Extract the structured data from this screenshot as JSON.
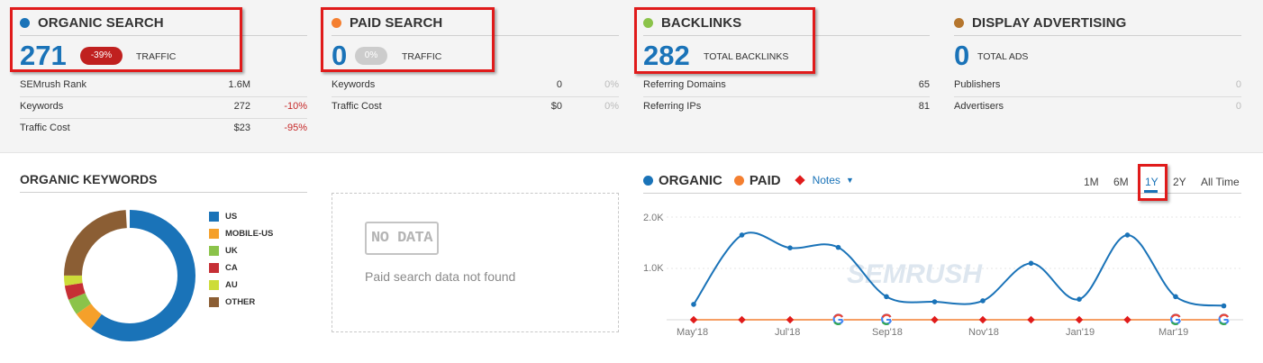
{
  "colors": {
    "blue": "#1a73b8",
    "orange": "#f47f30",
    "green": "#8bc34a",
    "brown": "#b5762e",
    "red": "#e01b1b",
    "pill_red": "#c0201f",
    "pill_grey": "#cccccc",
    "neg": "#c62828",
    "grey": "#999999"
  },
  "organic": {
    "title": "ORGANIC SEARCH",
    "value": "271",
    "change": "-39%",
    "label": "TRAFFIC",
    "rows": [
      {
        "label": "SEMrush Rank",
        "value": "1.6M",
        "change": ""
      },
      {
        "label": "Keywords",
        "value": "272",
        "change": "-10%"
      },
      {
        "label": "Traffic Cost",
        "value": "$23",
        "change": "-95%"
      }
    ]
  },
  "paid": {
    "title": "PAID SEARCH",
    "value": "0",
    "change": "0%",
    "label": "TRAFFIC",
    "rows": [
      {
        "label": "Keywords",
        "value": "0",
        "change": "0%"
      },
      {
        "label": "Traffic Cost",
        "value": "$0",
        "change": "0%"
      }
    ]
  },
  "backlinks": {
    "title": "BACKLINKS",
    "value": "282",
    "label": "TOTAL BACKLINKS",
    "rows": [
      {
        "label": "Referring Domains",
        "value": "65"
      },
      {
        "label": "Referring IPs",
        "value": "81"
      }
    ]
  },
  "display": {
    "title": "DISPLAY ADVERTISING",
    "value": "0",
    "label": "TOTAL ADS",
    "rows": [
      {
        "label": "Publishers",
        "value": "0"
      },
      {
        "label": "Advertisers",
        "value": "0"
      }
    ]
  },
  "organic_keywords": {
    "title": "ORGANIC KEYWORDS",
    "legend": [
      {
        "label": "US",
        "color": "#1a73b8"
      },
      {
        "label": "MOBILE-US",
        "color": "#f5a02a"
      },
      {
        "label": "UK",
        "color": "#8bc34a"
      },
      {
        "label": "CA",
        "color": "#c62f35"
      },
      {
        "label": "AU",
        "color": "#cddc39"
      },
      {
        "label": "OTHER",
        "color": "#8b5e34"
      }
    ],
    "shares": [
      0.6,
      0.05,
      0.04,
      0.035,
      0.025,
      0.24
    ]
  },
  "paid_panel": {
    "badge": "NO DATA",
    "message": "Paid search data not found"
  },
  "trend": {
    "legend_organic": "ORGANIC",
    "legend_paid": "PAID",
    "notes": "Notes",
    "periods": [
      "1M",
      "6M",
      "1Y",
      "2Y",
      "All Time"
    ],
    "active_period": "1Y"
  },
  "chart_data": {
    "type": "line",
    "x": [
      "May'18",
      "Jun'18",
      "Jul'18",
      "Aug'18",
      "Sep'18",
      "Oct'18",
      "Nov'18",
      "Dec'18",
      "Jan'19",
      "Feb'19",
      "Mar'19",
      "Apr'19"
    ],
    "xticks": [
      "May'18",
      "Jul'18",
      "Sep'18",
      "Nov'18",
      "Jan'19",
      "Mar'19"
    ],
    "yticks": [
      "2.0K",
      "1.0K"
    ],
    "ylim": [
      0,
      2000
    ],
    "series": [
      {
        "name": "ORGANIC",
        "color": "#1a73b8",
        "values": [
          300,
          1650,
          1400,
          1410,
          450,
          350,
          370,
          1100,
          400,
          1650,
          450,
          270
        ]
      },
      {
        "name": "PAID",
        "color": "#f47f30",
        "values": [
          0,
          0,
          0,
          0,
          0,
          0,
          0,
          0,
          0,
          0,
          0,
          0
        ]
      }
    ],
    "notes_markers": [
      "diamond",
      "diamond",
      "diamond",
      "google",
      "google",
      "diamond",
      "diamond",
      "diamond",
      "diamond",
      "diamond",
      "google",
      "google"
    ],
    "watermark": "SEMRUSH"
  }
}
